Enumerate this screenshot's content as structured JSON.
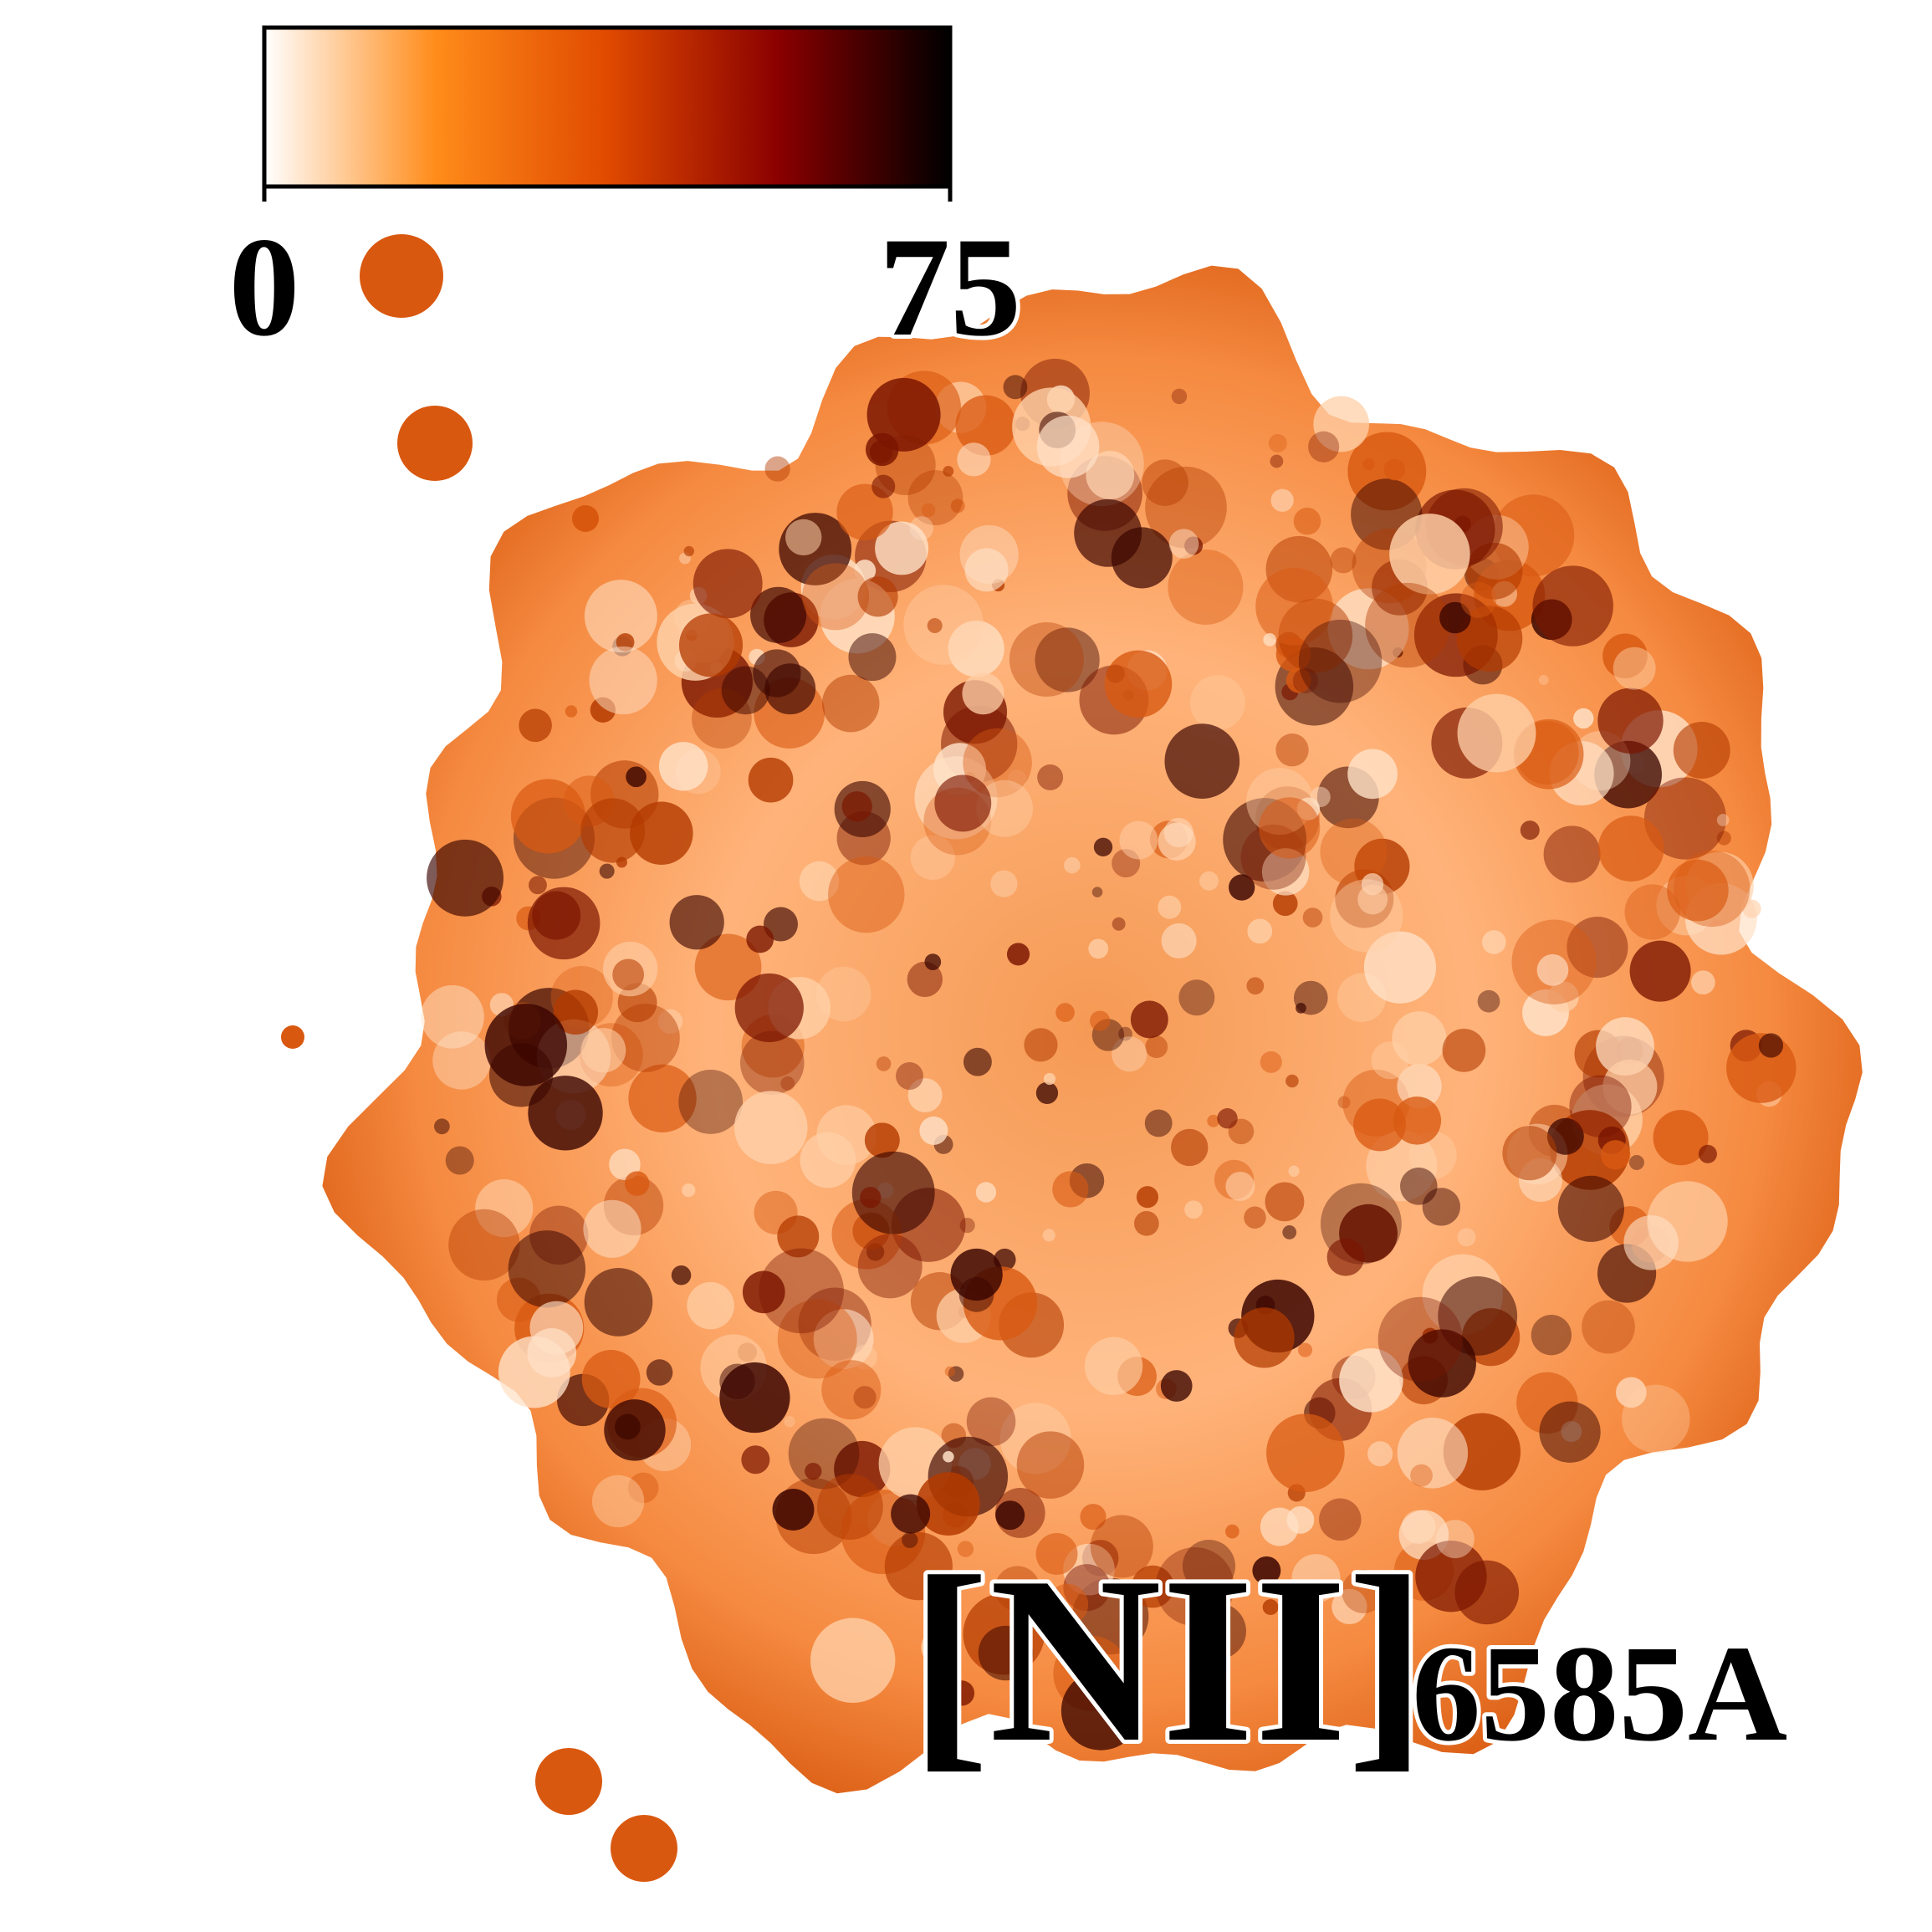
{
  "colorbar": {
    "lim": [
      0,
      75
    ],
    "ticks": [
      0,
      75
    ],
    "colors": [
      "#ffffff",
      "#ff8c1a",
      "#e04a00",
      "#8a0000",
      "#000000"
    ]
  },
  "label": {
    "main": "[NII]",
    "sub": "6585A"
  }
}
